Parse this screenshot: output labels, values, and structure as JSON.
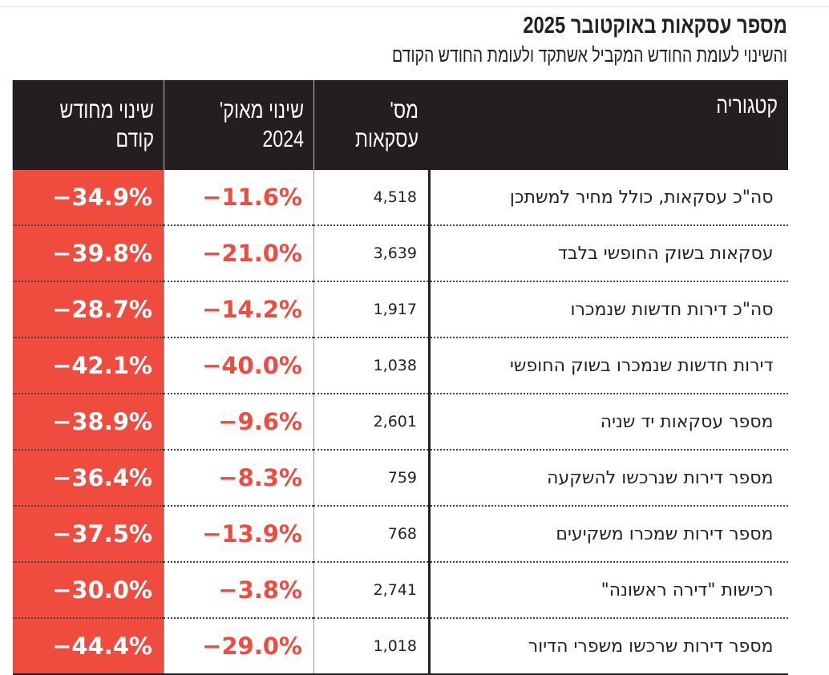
{
  "title": "מספר עסקאות באוקטובר 2025",
  "subtitle": "והשינוי לעומת החודש המקביל אשתקד ולעומת החודש הקודם",
  "colors": {
    "accent_red": "#ef4b3f",
    "header_bg": "#231f20"
  },
  "headers": {
    "category": "קטגוריה",
    "count": "מס' עסקאות",
    "change_oct_2024": "שינוי מאוק' 2024",
    "change_prev_month": "שינוי מחודש קודם"
  },
  "rows": [
    {
      "category": "סה\"כ עסקאות, כולל מחיר למשתכן",
      "count": "4,518",
      "change_oct_2024": "−11.6%",
      "change_prev_month": "−34.9%"
    },
    {
      "category": "עסקאות בשוק החופשי בלבד",
      "count": "3,639",
      "change_oct_2024": "−21.0%",
      "change_prev_month": "−39.8%"
    },
    {
      "category": "סה\"כ דירות חדשות שנמכרו",
      "count": "1,917",
      "change_oct_2024": "−14.2%",
      "change_prev_month": "−28.7%"
    },
    {
      "category": "דירות חדשות שנמכרו בשוק החופשי",
      "count": "1,038",
      "change_oct_2024": "−40.0%",
      "change_prev_month": "−42.1%"
    },
    {
      "category": "מספר עסקאות יד שניה",
      "count": "2,601",
      "change_oct_2024": "−9.6%",
      "change_prev_month": "−38.9%"
    },
    {
      "category": "מספר דירות שנרכשו להשקעה",
      "count": "759",
      "change_oct_2024": "−8.3%",
      "change_prev_month": "−36.4%"
    },
    {
      "category": "מספר דירות שמכרו משקיעים",
      "count": "768",
      "change_oct_2024": "−13.9%",
      "change_prev_month": "−37.5%"
    },
    {
      "category": "רכישות \"דירה ראשונה\"",
      "count": "2,741",
      "change_oct_2024": "−3.8%",
      "change_prev_month": "−30.0%"
    },
    {
      "category": "מספר דירות שרכשו משפרי הדיור",
      "count": "1,018",
      "change_oct_2024": "−29.0%",
      "change_prev_month": "−44.4%"
    }
  ]
}
